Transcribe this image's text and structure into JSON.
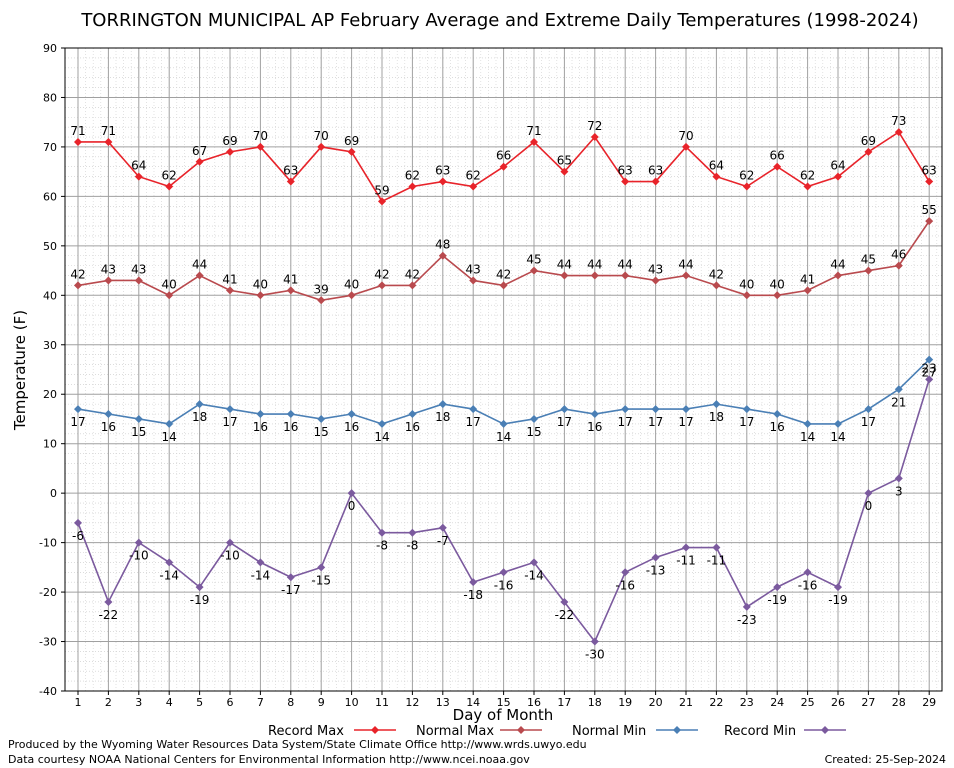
{
  "chart_data": {
    "type": "line",
    "title": "TORRINGTON MUNICIPAL AP February Average and Extreme Daily Temperatures (1998-2024)",
    "xlabel": "Day of Month",
    "ylabel": "Temperature (F)",
    "ylim": [
      -40,
      90
    ],
    "yticks": [
      90,
      80,
      70,
      60,
      50,
      40,
      30,
      20,
      10,
      0,
      -10,
      -20,
      -30,
      -40
    ],
    "x": [
      1,
      2,
      3,
      4,
      5,
      6,
      7,
      8,
      9,
      10,
      11,
      12,
      13,
      14,
      15,
      16,
      17,
      18,
      19,
      20,
      21,
      22,
      23,
      24,
      25,
      26,
      27,
      28,
      29
    ],
    "grid": true,
    "legend_position": "bottom",
    "series": [
      {
        "name": "Record Max",
        "color": "#e8232a",
        "values": [
          71,
          71,
          64,
          62,
          67,
          69,
          70,
          63,
          70,
          69,
          59,
          62,
          63,
          62,
          66,
          71,
          65,
          72,
          63,
          63,
          70,
          64,
          62,
          66,
          62,
          64,
          69,
          73,
          63
        ]
      },
      {
        "name": "Normal Max",
        "color": "#b94a4e",
        "values": [
          42,
          43,
          43,
          40,
          44,
          41,
          40,
          41,
          39,
          40,
          42,
          42,
          48,
          43,
          42,
          45,
          44,
          44,
          44,
          43,
          44,
          42,
          40,
          40,
          41,
          44,
          45,
          46,
          55
        ]
      },
      {
        "name": "Normal Min",
        "color": "#4a7fb5",
        "values": [
          17,
          16,
          15,
          14,
          18,
          17,
          16,
          16,
          15,
          16,
          14,
          16,
          18,
          17,
          14,
          15,
          17,
          16,
          17,
          17,
          17,
          18,
          17,
          16,
          14,
          14,
          17,
          21,
          27
        ]
      },
      {
        "name": "Record Min",
        "color": "#7b5a9e",
        "values": [
          -6,
          -22,
          -10,
          -14,
          -19,
          -10,
          -14,
          -17,
          -15,
          0,
          -8,
          -8,
          -7,
          -18,
          -16,
          -14,
          -22,
          -30,
          -16,
          -13,
          -11,
          -11,
          -23,
          -19,
          -16,
          -19,
          0,
          3,
          23
        ]
      }
    ]
  },
  "footer": {
    "produced": "Produced by the Wyoming Water Resources Data System/State Climate Office http://www.wrds.uwyo.edu",
    "courtesy": "Data courtesy NOAA National Centers for Environmental Information http://www.ncei.noaa.gov",
    "created": "Created:  25-Sep-2024"
  }
}
